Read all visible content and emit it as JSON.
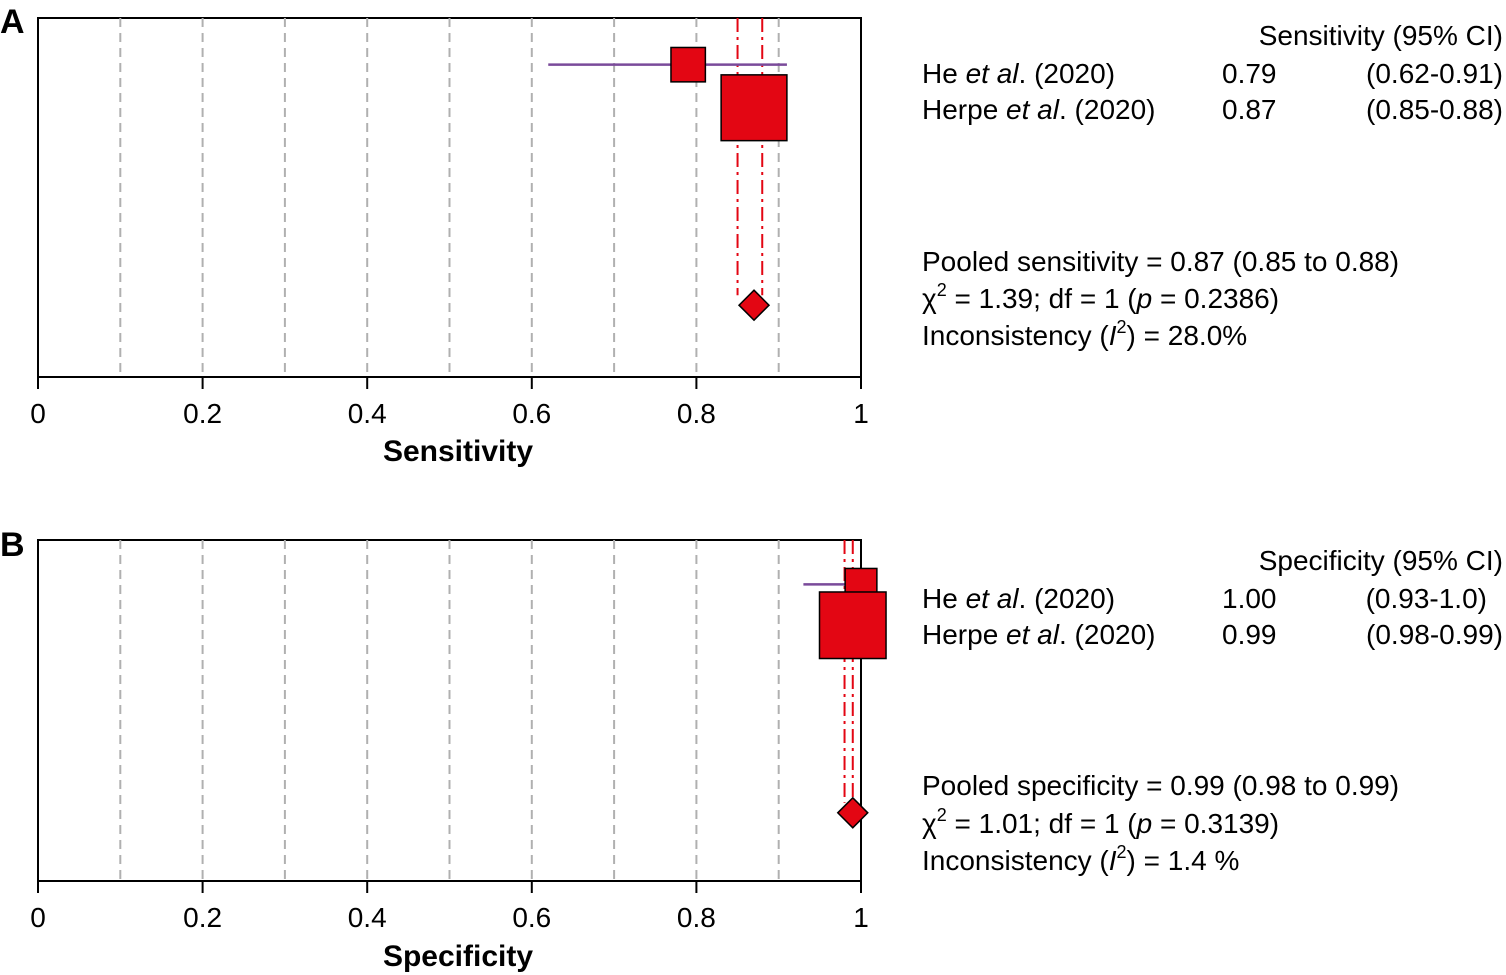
{
  "colors": {
    "marker_fill": "#e30613",
    "ci_line": "#7a4a9a",
    "pooled_line": "#e30613",
    "grid": "#b0b0b0",
    "axis": "#000000"
  },
  "chart_data": [
    {
      "type": "forest",
      "panel_label": "A",
      "xlabel": "Sensitivity",
      "xlim": [
        0,
        1
      ],
      "ticks": [
        "0",
        "0.2",
        "0.4",
        "0.6",
        "0.8",
        "1"
      ],
      "column_header": "Sensitivity (95% CI)",
      "studies": [
        {
          "author": "He",
          "etal": "et al",
          "year_suffix": ". (2020)",
          "estimate": 0.79,
          "value": "0.79",
          "ci_low": 0.62,
          "ci_high": 0.91,
          "ci": "(0.62-0.91)",
          "weight": 0.09
        },
        {
          "author": "Herpe",
          "etal": "et al",
          "year_suffix": ". (2020)",
          "estimate": 0.87,
          "value": "0.87",
          "ci_low": 0.85,
          "ci_high": 0.88,
          "ci": "(0.85-0.88)",
          "weight": 0.91
        }
      ],
      "pooled": {
        "estimate": 0.87,
        "ci_low": 0.85,
        "ci_high": 0.88
      },
      "stats": {
        "line1": "Pooled sensitivity = 0.87 (0.85 to 0.88)",
        "line2_chi": "χ",
        "line2_sup": "2",
        "line2_a": " = 1.39; df = 1 (",
        "line2_p": "p",
        "line2_b": " = 0.2386)",
        "line3_a": "Inconsistency (",
        "line3_i": "I",
        "line3_sup": "2",
        "line3_b": ") = 28.0%"
      }
    },
    {
      "type": "forest",
      "panel_label": "B",
      "xlabel": "Specificity",
      "xlim": [
        0,
        1
      ],
      "ticks": [
        "0",
        "0.2",
        "0.4",
        "0.6",
        "0.8",
        "1"
      ],
      "column_header": "Specificity (95% CI)",
      "studies": [
        {
          "author": "He",
          "etal": "et al",
          "year_suffix": ". (2020)",
          "estimate": 1.0,
          "value": "1.00",
          "ci_low": 0.93,
          "ci_high": 1.0,
          "ci": "(0.93-1.0)",
          "weight": 0.06
        },
        {
          "author": "Herpe",
          "etal": "et al",
          "year_suffix": ". (2020)",
          "estimate": 0.99,
          "value": "0.99",
          "ci_low": 0.98,
          "ci_high": 0.99,
          "ci": "(0.98-0.99)",
          "weight": 0.94
        }
      ],
      "pooled": {
        "estimate": 0.99,
        "ci_low": 0.98,
        "ci_high": 0.99
      },
      "stats": {
        "line1": "Pooled specificity = 0.99 (0.98 to 0.99)",
        "line2_chi": "χ",
        "line2_sup": "2",
        "line2_a": " = 1.01; df = 1 (",
        "line2_p": "p",
        "line2_b": " = 0.3139)",
        "line3_a": "Inconsistency (",
        "line3_i": "I",
        "line3_sup": "2",
        "line3_b": ") = 1.4 %"
      }
    }
  ]
}
